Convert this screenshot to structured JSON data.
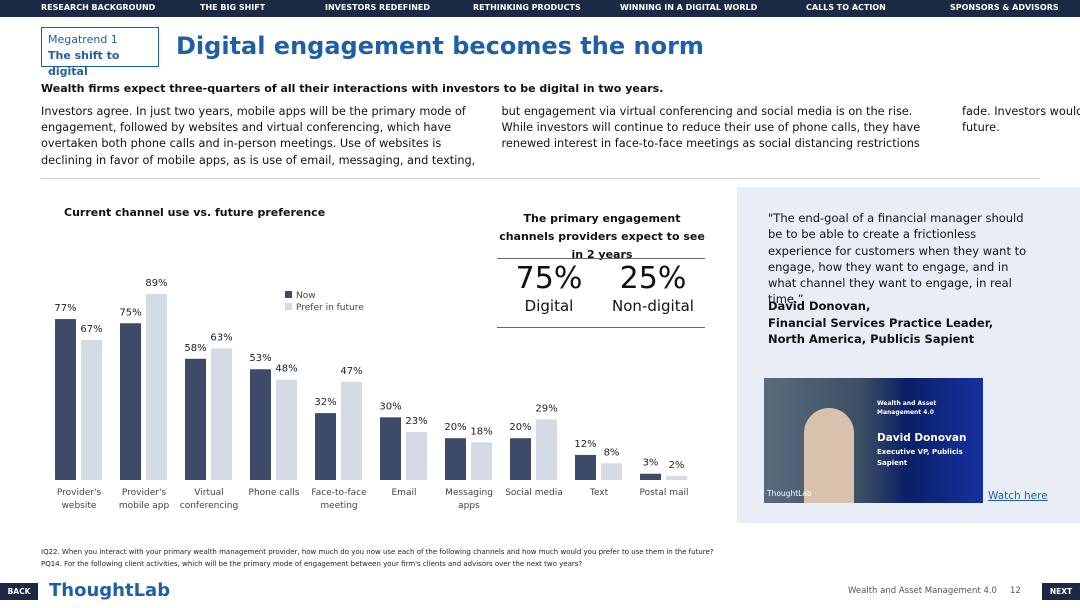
{
  "nav": [
    "RESEARCH BACKGROUND",
    "THE BIG SHIFT",
    "INVESTORS REDEFINED",
    "RETHINKING PRODUCTS",
    "WINNING IN A DIGITAL WORLD",
    "CALLS TO ACTION",
    "SPONSORS & ADVISORS"
  ],
  "megatrend": {
    "number": "Megatrend 1",
    "name": "The shift to digital"
  },
  "title": "Digital engagement becomes the norm",
  "subtitle": "Wealth firms expect three-quarters of all their interactions with investors to be digital in two years.",
  "body": "Investors agree. In just two years, mobile apps will be the primary mode of engagement, followed by websites and virtual conferencing, which have overtaken both phone calls and in-person meetings. Use of websites is declining in favor of mobile apps, as is use of email, messaging, and texting, but engagement via virtual conferencing and social media is on the rise. While investors will continue to reduce their use of phone calls, they have renewed interest in face-to-face meetings as social distancing restrictions fade. Investors would like a blend of personal and virtual contact in the future.",
  "chart_data": {
    "type": "bar",
    "title": "Current channel use vs. future preference",
    "categories": [
      "Provider's website",
      "Provider's mobile app",
      "Virtual conferencing",
      "Phone calls",
      "Face-to-face meeting",
      "Email",
      "Messaging apps",
      "Social media",
      "Text",
      "Postal mail"
    ],
    "series": [
      {
        "name": "Now",
        "color": "#3d4b68",
        "values": [
          77,
          75,
          58,
          53,
          32,
          30,
          20,
          20,
          12,
          3
        ],
        "value_labels": [
          "77%",
          "75%",
          "58%",
          "53%",
          "32%",
          "30%",
          "20%",
          "20%",
          "12%",
          "3%"
        ]
      },
      {
        "name": "Prefer in future",
        "color": "#d5dbe5",
        "values": [
          67,
          89,
          63,
          48,
          47,
          23,
          18,
          29,
          8,
          2
        ],
        "value_labels": [
          "67%",
          "89%",
          "63%",
          "48%",
          "47%",
          "23%",
          "18%",
          "29%",
          "8%",
          "2%"
        ]
      }
    ]
  },
  "channels": {
    "title": "The primary engagement channels providers expect to see in 2 years",
    "stats": [
      {
        "value": "75%",
        "label": "Digital"
      },
      {
        "value": "25%",
        "label": "Non-digital"
      }
    ]
  },
  "quote": {
    "text": "\"The end-goal of a financial manager should be to be able to create a frictionless experience for customers when they want to engage, how they want to engage, and in what channel they want to engage, in real time.”",
    "attribution": [
      "David Donovan,",
      "Financial Services Practice Leader,",
      "North America, Publicis Sapient"
    ]
  },
  "video": {
    "series": "Wealth and Asset Management 4.0",
    "name": "David Donovan",
    "role": "Executive VP, Publicis Sapient",
    "brand": "ThoughtLab",
    "link": "Watch here"
  },
  "footnotes": [
    "IQ22. When you interact with your primary wealth management provider, how much do you now use each of the following channels and how much would you prefer to use them in the future?",
    "PQ14. For the following client activities, which will be the primary mode of engagement between your firm's clients and advisors over the next two years?"
  ],
  "footer": {
    "back": "BACK",
    "logo": "ThoughtLab",
    "report": "Wealth and Asset Management 4.0",
    "page": "12",
    "next": "NEXT"
  }
}
